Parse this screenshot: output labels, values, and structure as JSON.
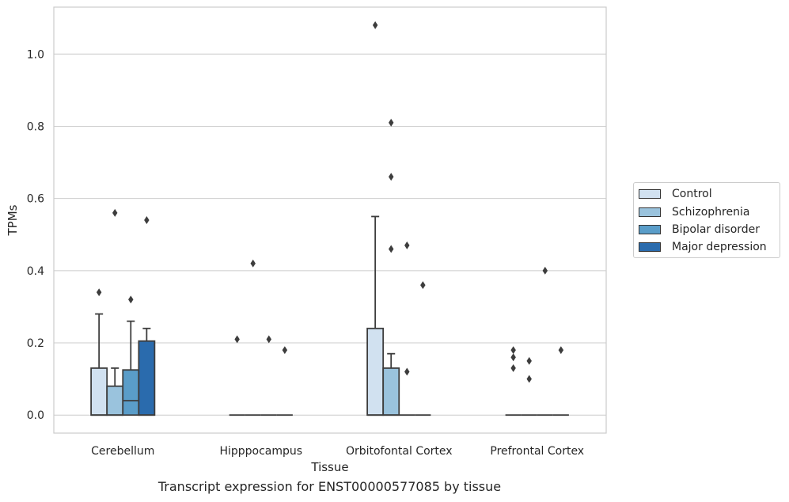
{
  "caption": "Transcript expression for ENST00000577085 by tissue",
  "chart_data": {
    "type": "boxplot",
    "xlabel": "Tissue",
    "ylabel": "TPMs",
    "ylim": [
      -0.05,
      1.13
    ],
    "yticks": [
      "0.0",
      "0.2",
      "0.4",
      "0.6",
      "0.8",
      "1.0"
    ],
    "grid": true,
    "legend_position": "right, outside plot",
    "categories": [
      "Cerebellum",
      "Hipppocampus",
      "Orbitofontal Cortex",
      "Prefrontal Cortex"
    ],
    "series": [
      {
        "name": "Control",
        "color": "#d1e1f0",
        "boxes": [
          {
            "q1": 0,
            "median": 0,
            "q3": 0.13,
            "whisker_low": 0,
            "whisker_high": 0.28,
            "outliers": [
              0.34
            ]
          },
          {
            "q1": 0,
            "median": 0,
            "q3": 0,
            "whisker_low": 0,
            "whisker_high": 0,
            "outliers": [
              0.21
            ]
          },
          {
            "q1": 0,
            "median": 0,
            "q3": 0.24,
            "whisker_low": 0,
            "whisker_high": 0.55,
            "outliers": [
              1.08
            ]
          },
          {
            "q1": 0,
            "median": 0,
            "q3": 0,
            "whisker_low": 0,
            "whisker_high": 0,
            "outliers": [
              0.13,
              0.16,
              0.18
            ]
          }
        ]
      },
      {
        "name": "Schizophrenia",
        "color": "#9ac3dd",
        "boxes": [
          {
            "q1": 0,
            "median": 0,
            "q3": 0.08,
            "whisker_low": 0,
            "whisker_high": 0.13,
            "outliers": [
              0.56
            ]
          },
          {
            "q1": 0,
            "median": 0,
            "q3": 0,
            "whisker_low": 0,
            "whisker_high": 0,
            "outliers": [
              0.42
            ]
          },
          {
            "q1": 0,
            "median": 0,
            "q3": 0.13,
            "whisker_low": 0,
            "whisker_high": 0.17,
            "outliers": [
              0.46,
              0.66,
              0.81
            ]
          },
          {
            "q1": 0,
            "median": 0,
            "q3": 0,
            "whisker_low": 0,
            "whisker_high": 0,
            "outliers": [
              0.1,
              0.15
            ]
          }
        ]
      },
      {
        "name": "Bipolar disorder",
        "color": "#5a9dc9",
        "boxes": [
          {
            "q1": 0,
            "median": 0.04,
            "q3": 0.125,
            "whisker_low": 0,
            "whisker_high": 0.26,
            "outliers": [
              0.32
            ]
          },
          {
            "q1": 0,
            "median": 0,
            "q3": 0,
            "whisker_low": 0,
            "whisker_high": 0,
            "outliers": [
              0.21
            ]
          },
          {
            "q1": 0,
            "median": 0,
            "q3": 0,
            "whisker_low": 0,
            "whisker_high": 0,
            "outliers": [
              0.12,
              0.47
            ]
          },
          {
            "q1": 0,
            "median": 0,
            "q3": 0,
            "whisker_low": 0,
            "whisker_high": 0,
            "outliers": [
              0.4
            ]
          }
        ]
      },
      {
        "name": "Major depression",
        "color": "#2a6bad",
        "boxes": [
          {
            "q1": 0,
            "median": 0,
            "q3": 0.205,
            "whisker_low": 0,
            "whisker_high": 0.24,
            "outliers": [
              0.54
            ]
          },
          {
            "q1": 0,
            "median": 0,
            "q3": 0,
            "whisker_low": 0,
            "whisker_high": 0,
            "outliers": [
              0.18
            ]
          },
          {
            "q1": 0,
            "median": 0,
            "q3": 0,
            "whisker_low": 0,
            "whisker_high": 0,
            "outliers": [
              0.36
            ]
          },
          {
            "q1": 0,
            "median": 0,
            "q3": 0,
            "whisker_low": 0,
            "whisker_high": 0,
            "outliers": [
              0.18
            ]
          }
        ]
      }
    ]
  }
}
